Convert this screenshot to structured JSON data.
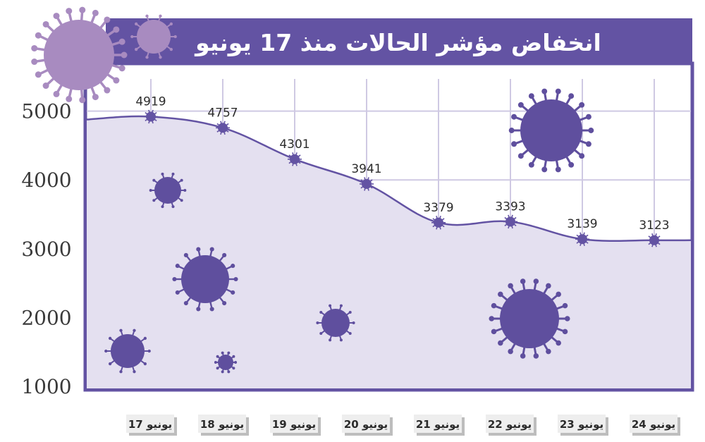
{
  "chart_data": {
    "type": "area",
    "title": "انخفاض مؤشر الحالات منذ 17 يونيو",
    "categories": [
      "يونيو 17",
      "يونيو 18",
      "يونيو 19",
      "يونيو 20",
      "يونيو 21",
      "يونيو 22",
      "يونيو 23",
      "يونيو 24"
    ],
    "values": [
      4919,
      4757,
      4301,
      3941,
      3379,
      3393,
      3139,
      3123
    ],
    "yticks": [
      1000,
      2000,
      3000,
      4000,
      5000
    ],
    "ylim": [
      1000,
      5500
    ],
    "grid": true,
    "colors": {
      "accent": "#6353a3",
      "fill": "#e4e0f0",
      "virus_light": "#a88bc0",
      "virus_dark": "#5f4f9e",
      "gridline": "#cfc9e3"
    }
  }
}
